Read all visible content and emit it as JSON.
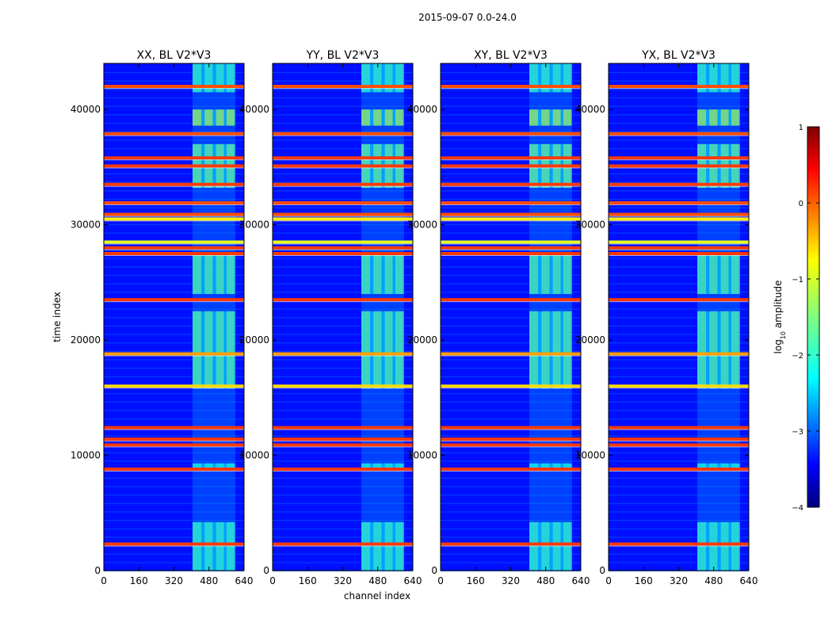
{
  "figure": {
    "suptitle": "2015-09-07 0.0-24.0",
    "xlabel": "channel index",
    "ylabel": "time index"
  },
  "chart_data": {
    "type": "heatmap",
    "x_range": [
      0,
      640
    ],
    "y_range": [
      0,
      44000
    ],
    "x_ticks": [
      "0",
      "160",
      "320",
      "480",
      "640"
    ],
    "x_tick_values": [
      0,
      160,
      320,
      480,
      640
    ],
    "y_ticks": [
      "0",
      "10000",
      "20000",
      "30000",
      "40000"
    ],
    "y_tick_values": [
      0,
      10000,
      20000,
      30000,
      40000
    ],
    "panels": [
      {
        "title": "XX, BL V2*V3",
        "id": "xx"
      },
      {
        "title": "YY, BL V2*V3",
        "id": "yy"
      },
      {
        "title": "XY, BL V2*V3",
        "id": "xy"
      },
      {
        "title": "YX, BL V2*V3",
        "id": "yx"
      }
    ],
    "colorbar": {
      "label_prefix": "log",
      "label_sub": "10",
      "label_suffix": " amplitude",
      "ticks": [
        "1",
        "0",
        "−1",
        "−2",
        "−3",
        "−4"
      ],
      "tick_values": [
        1,
        0,
        -1,
        -2,
        -3,
        -4
      ],
      "vmin": -4,
      "vmax": 1,
      "colormap": "jet"
    },
    "background_level": -3.3,
    "signal_channel_range": [
      405,
      600
    ],
    "signal_column_edges": [
      405,
      445,
      460,
      497,
      512,
      548,
      560,
      596
    ],
    "signal_time_blocks": [
      {
        "t0": 0,
        "t1": 4200,
        "level": -1.8
      },
      {
        "t0": 8700,
        "t1": 9300,
        "level": -2.0
      },
      {
        "t0": 15800,
        "t1": 22500,
        "level": -1.6
      },
      {
        "t0": 24000,
        "t1": 27500,
        "level": -1.6
      },
      {
        "t0": 33200,
        "t1": 37000,
        "level": -1.5
      },
      {
        "t0": 38600,
        "t1": 40000,
        "level": -1.1
      },
      {
        "t0": 41500,
        "t1": 44000,
        "level": -1.8
      }
    ],
    "full_width_lines": [
      {
        "t": 2300,
        "level": 0.1
      },
      {
        "t": 8800,
        "level": 0.1
      },
      {
        "t": 10900,
        "level": 0.1
      },
      {
        "t": 11400,
        "level": 0.1
      },
      {
        "t": 12400,
        "level": 0.1
      },
      {
        "t": 16000,
        "level": -0.7
      },
      {
        "t": 18800,
        "level": -0.4
      },
      {
        "t": 23500,
        "level": 0.1
      },
      {
        "t": 27500,
        "level": 0.1
      },
      {
        "t": 28000,
        "level": 0.1
      },
      {
        "t": 28500,
        "level": -1.0
      },
      {
        "t": 30500,
        "level": -0.8
      },
      {
        "t": 30900,
        "level": 0.0
      },
      {
        "t": 31900,
        "level": 0.0
      },
      {
        "t": 33500,
        "level": 0.1
      },
      {
        "t": 35100,
        "level": 0.1
      },
      {
        "t": 35800,
        "level": 0.1
      },
      {
        "t": 37900,
        "level": 0.0
      },
      {
        "t": 42000,
        "level": 0.0
      }
    ]
  }
}
